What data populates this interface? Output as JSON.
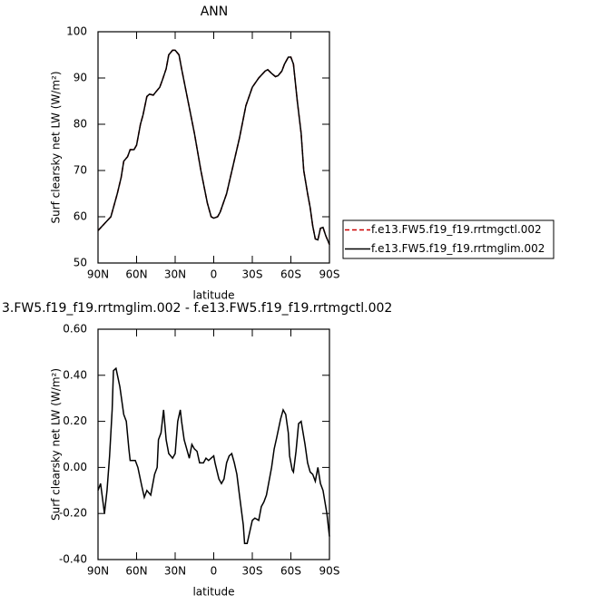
{
  "chart_data": [
    {
      "type": "line",
      "title": "ANN",
      "xlabel": "latitude",
      "ylabel": "Surf clearsky net LW (W/m²)",
      "legend": "right",
      "x": [
        90,
        85,
        80,
        75,
        72,
        70,
        67,
        65,
        62,
        60,
        57,
        55,
        52,
        50,
        47,
        45,
        42,
        40,
        37,
        35,
        32,
        30,
        27,
        25,
        20,
        15,
        10,
        5,
        2,
        0,
        -3,
        -5,
        -10,
        -15,
        -20,
        -25,
        -30,
        -35,
        -40,
        -42,
        -45,
        -48,
        -50,
        -53,
        -55,
        -58,
        -60,
        -62,
        -65,
        -68,
        -70,
        -73,
        -75,
        -77,
        -79,
        -81,
        -83,
        -85,
        -87,
        -90
      ],
      "series": [
        {
          "name": "f.e13.FW5.f19_f19.rrtmgctl.002",
          "color": "#cc0000",
          "dash": true,
          "values": [
            57,
            58.5,
            60,
            65,
            68.5,
            72,
            73,
            74.5,
            74.5,
            75.5,
            80,
            82,
            86,
            86.5,
            86.3,
            87,
            88,
            89.5,
            92,
            95,
            96,
            96,
            95,
            92,
            85,
            78,
            70,
            63,
            60,
            59.7,
            60,
            61,
            65,
            71,
            77,
            84,
            88,
            90,
            91.5,
            91.8,
            91,
            90.3,
            90.5,
            91.5,
            93,
            94.5,
            94.5,
            93,
            85,
            78,
            70,
            65,
            62,
            58,
            55.2,
            55,
            57.5,
            57.7,
            56,
            54
          ]
        },
        {
          "name": "f.e13.FW5.f19_f19.rrtmglim.002",
          "color": "#000000",
          "dash": false,
          "values": [
            57,
            58.5,
            60,
            65,
            68.5,
            72,
            73,
            74.5,
            74.5,
            75.5,
            80,
            82,
            86,
            86.5,
            86.3,
            87,
            88,
            89.5,
            92,
            95,
            96,
            96,
            95,
            92,
            85,
            78,
            70,
            63,
            60,
            59.7,
            60,
            61,
            65,
            71,
            77,
            84,
            88,
            90,
            91.5,
            91.8,
            91,
            90.3,
            90.5,
            91.5,
            93,
            94.5,
            94.5,
            93,
            85,
            78,
            70,
            65,
            62,
            58,
            55.2,
            55,
            57.5,
            57.7,
            56,
            54
          ]
        }
      ],
      "xlim": [
        90,
        -90
      ],
      "xticks": [
        {
          "value": 90,
          "label": "90N"
        },
        {
          "value": 60,
          "label": "60N"
        },
        {
          "value": 30,
          "label": "30N"
        },
        0,
        {
          "value": -30,
          "label": "30S"
        },
        {
          "value": -60,
          "label": "60S"
        },
        {
          "value": -90,
          "label": "90S"
        }
      ],
      "ylim": [
        50,
        100
      ],
      "yticks": [
        50,
        60,
        70,
        80,
        90,
        100
      ]
    },
    {
      "type": "line",
      "title": "3.FW5.f19_f19.rrtmglim.002 - f.e13.FW5.f19_f19.rrtmgctl.002",
      "xlabel": "latitude",
      "ylabel": "Surf clearsky net LW (W/m²)",
      "x": [
        90,
        88,
        85,
        83,
        81,
        79,
        78,
        76,
        73,
        70,
        68,
        66,
        65,
        61,
        59,
        56,
        54,
        52,
        49,
        46,
        44,
        43,
        41,
        39,
        37,
        35,
        32,
        30,
        28,
        26,
        25,
        23,
        20,
        19,
        17,
        15,
        13,
        11,
        8,
        6,
        4,
        2,
        0,
        -1,
        -4,
        -6,
        -8,
        -10,
        -12,
        -14,
        -16,
        -18,
        -20,
        -23,
        -24,
        -26,
        -28,
        -30,
        -32,
        -35,
        -37,
        -39,
        -41,
        -43,
        -45,
        -47,
        -49,
        -52,
        -54,
        -56,
        -58,
        -59,
        -61,
        -62,
        -64,
        -66,
        -68,
        -71,
        -73,
        -75,
        -77,
        -79,
        -81,
        -83,
        -85,
        -88,
        -90
      ],
      "series": [
        {
          "name": null,
          "color": "#000000",
          "dash": false,
          "values": [
            -0.1,
            -0.07,
            -0.2,
            -0.1,
            0.05,
            0.25,
            0.42,
            0.43,
            0.35,
            0.23,
            0.2,
            0.08,
            0.03,
            0.03,
            0.0,
            -0.08,
            -0.13,
            -0.1,
            -0.12,
            -0.03,
            0.0,
            0.12,
            0.15,
            0.25,
            0.12,
            0.06,
            0.04,
            0.06,
            0.2,
            0.25,
            0.2,
            0.12,
            0.06,
            0.04,
            0.1,
            0.08,
            0.07,
            0.02,
            0.02,
            0.04,
            0.03,
            0.04,
            0.05,
            0.02,
            -0.05,
            -0.07,
            -0.05,
            0.02,
            0.05,
            0.06,
            0.02,
            -0.03,
            -0.12,
            -0.25,
            -0.33,
            -0.33,
            -0.28,
            -0.23,
            -0.22,
            -0.23,
            -0.17,
            -0.15,
            -0.12,
            -0.06,
            0.0,
            0.08,
            0.13,
            0.21,
            0.25,
            0.23,
            0.15,
            0.05,
            -0.01,
            -0.02,
            0.07,
            0.19,
            0.2,
            0.1,
            0.02,
            -0.02,
            -0.03,
            -0.06,
            0.0,
            -0.07,
            -0.1,
            -0.2,
            -0.3
          ]
        }
      ],
      "xlim": [
        90,
        -90
      ],
      "xticks": [
        {
          "value": 90,
          "label": "90N"
        },
        {
          "value": 60,
          "label": "60N"
        },
        {
          "value": 30,
          "label": "30N"
        },
        0,
        {
          "value": -30,
          "label": "30S"
        },
        {
          "value": -60,
          "label": "60S"
        },
        {
          "value": -90,
          "label": "90S"
        }
      ],
      "ylim": [
        -0.4,
        0.6
      ],
      "yticks": [
        {
          "value": -0.4,
          "label": "-0.40"
        },
        {
          "value": -0.2,
          "label": "-0.20"
        },
        {
          "value": 0,
          "label": "0.00"
        },
        {
          "value": 0.2,
          "label": "0.20"
        },
        {
          "value": 0.4,
          "label": "0.40"
        },
        {
          "value": 0.6,
          "label": "0.60"
        }
      ]
    }
  ]
}
